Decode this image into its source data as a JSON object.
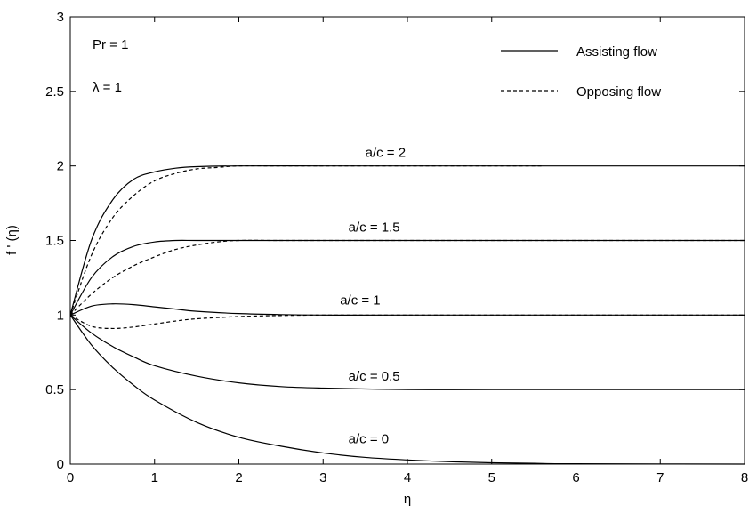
{
  "chart_data": {
    "type": "line",
    "xlabel": "η",
    "ylabel": "f ' (η)",
    "xlim": [
      0,
      8
    ],
    "ylim": [
      0,
      3
    ],
    "xticks": [
      0,
      1,
      2,
      3,
      4,
      5,
      6,
      7,
      8
    ],
    "yticks": [
      0,
      0.5,
      1,
      1.5,
      2,
      2.5,
      3
    ],
    "x_tick_labels": [
      "0",
      "1",
      "2",
      "3",
      "4",
      "5",
      "6",
      "7",
      "8"
    ],
    "y_tick_labels": [
      "0",
      "0.5",
      "1",
      "1.5",
      "2",
      "2.5",
      "3"
    ],
    "grid": false,
    "legend": {
      "position": "top-right",
      "entries": [
        {
          "label": "Assisting flow",
          "style": "solid"
        },
        {
          "label": "Opposing flow",
          "style": "dashed"
        }
      ]
    },
    "params": [
      "Pr = 1",
      "λ = 1"
    ],
    "annotations": [
      {
        "text": "a/c = 2",
        "x": 3.5,
        "y": 2.06
      },
      {
        "text": "a/c = 1.5",
        "x": 3.3,
        "y": 1.56
      },
      {
        "text": "a/c = 1",
        "x": 3.2,
        "y": 1.07
      },
      {
        "text": "a/c = 0.5",
        "x": 3.3,
        "y": 0.56
      },
      {
        "text": "a/c = 0",
        "x": 3.3,
        "y": 0.14
      }
    ],
    "series": [
      {
        "style": "solid",
        "x": [
          0,
          0.25,
          0.5,
          0.75,
          1,
          1.25,
          1.5,
          2,
          3,
          4,
          5,
          6,
          8
        ],
        "y": [
          1,
          1.5,
          1.77,
          1.91,
          1.96,
          1.985,
          1.995,
          2,
          2,
          2,
          2,
          2,
          2
        ]
      },
      {
        "style": "dashed",
        "x": [
          0,
          0.25,
          0.5,
          0.75,
          1,
          1.25,
          1.5,
          1.75,
          2,
          2.5,
          3,
          4,
          5,
          5.6
        ],
        "y": [
          1,
          1.4,
          1.65,
          1.8,
          1.9,
          1.95,
          1.98,
          1.99,
          2,
          2,
          2,
          2,
          2,
          2
        ]
      },
      {
        "style": "solid",
        "x": [
          0,
          0.25,
          0.5,
          0.75,
          1,
          1.25,
          1.5,
          2,
          3,
          5,
          8
        ],
        "y": [
          1,
          1.25,
          1.39,
          1.46,
          1.49,
          1.5,
          1.5,
          1.5,
          1.5,
          1.5,
          1.5
        ]
      },
      {
        "style": "dashed",
        "x": [
          0,
          0.25,
          0.5,
          0.75,
          1,
          1.25,
          1.5,
          1.75,
          2,
          2.5,
          3,
          4,
          5,
          8
        ],
        "y": [
          1,
          1.14,
          1.25,
          1.33,
          1.39,
          1.44,
          1.47,
          1.49,
          1.5,
          1.5,
          1.5,
          1.5,
          1.5,
          1.5
        ]
      },
      {
        "style": "solid",
        "x": [
          0,
          0.25,
          0.5,
          0.75,
          1,
          1.25,
          1.5,
          2,
          2.5,
          3,
          4,
          8
        ],
        "y": [
          1,
          1.06,
          1.075,
          1.07,
          1.055,
          1.04,
          1.025,
          1.01,
          1.003,
          1,
          1,
          1
        ]
      },
      {
        "style": "dashed",
        "x": [
          0,
          0.25,
          0.5,
          0.75,
          1,
          1.25,
          1.5,
          2,
          2.5,
          3,
          4,
          8
        ],
        "y": [
          1,
          0.925,
          0.91,
          0.92,
          0.94,
          0.96,
          0.975,
          0.99,
          0.997,
          1,
          1,
          1
        ]
      },
      {
        "style": "solid",
        "x": [
          0,
          0.25,
          0.5,
          0.75,
          1,
          1.5,
          2,
          2.5,
          3,
          4,
          5,
          8
        ],
        "y": [
          1,
          0.88,
          0.79,
          0.72,
          0.66,
          0.59,
          0.545,
          0.52,
          0.51,
          0.5,
          0.5,
          0.5
        ]
      },
      {
        "style": "solid",
        "x": [
          0,
          0.25,
          0.5,
          0.75,
          1,
          1.5,
          2,
          2.5,
          3,
          3.5,
          4,
          4.5,
          5,
          5.5,
          6,
          8
        ],
        "y": [
          1,
          0.8,
          0.65,
          0.53,
          0.43,
          0.28,
          0.18,
          0.12,
          0.075,
          0.045,
          0.028,
          0.016,
          0.009,
          0.005,
          0.002,
          0
        ]
      }
    ],
    "colors": {
      "line": "#000000",
      "background": "#ffffff"
    }
  }
}
